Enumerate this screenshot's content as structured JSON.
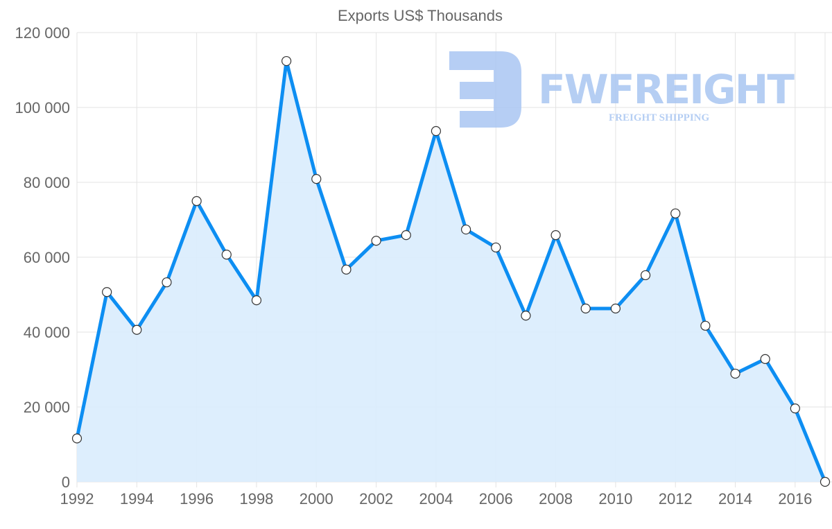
{
  "chart_data": {
    "type": "area",
    "title": "Exports US$ Thousands",
    "xlabel": "",
    "ylabel": "",
    "x": [
      1992,
      1993,
      1994,
      1995,
      1996,
      1997,
      1998,
      1999,
      2000,
      2001,
      2002,
      2003,
      2004,
      2005,
      2006,
      2007,
      2008,
      2009,
      2010,
      2011,
      2012,
      2013,
      2014,
      2015,
      2016,
      2017
    ],
    "series": [
      {
        "name": "Exports US$ Thousands",
        "values": [
          11600,
          50700,
          40600,
          53300,
          75000,
          60700,
          48500,
          112400,
          80900,
          56700,
          64400,
          65900,
          93700,
          67400,
          62600,
          44400,
          65900,
          46300,
          46300,
          55200,
          71700,
          41700,
          28900,
          32800,
          19600,
          0
        ]
      }
    ],
    "ylim": [
      0,
      120000
    ],
    "xlim": [
      1992,
      2017
    ],
    "y_ticks": [
      "0",
      "20 000",
      "40 000",
      "60 000",
      "80 000",
      "100 000",
      "120 000"
    ],
    "y_tick_values": [
      0,
      20000,
      40000,
      60000,
      80000,
      100000,
      120000
    ],
    "x_ticks": [
      "1992",
      "1994",
      "1996",
      "1998",
      "2000",
      "2002",
      "2004",
      "2006",
      "2008",
      "2010",
      "2012",
      "2014",
      "2016"
    ],
    "x_tick_values": [
      1992,
      1994,
      1996,
      1998,
      2000,
      2002,
      2004,
      2006,
      2008,
      2010,
      2012,
      2014,
      2016
    ],
    "grid": true,
    "legend": "none",
    "colors": {
      "line": "#0d8ef2",
      "fill": "#d9ecfd",
      "grid": "#e3e3e3",
      "marker_fill": "#ffffff",
      "marker_stroke": "#333333"
    }
  },
  "watermark": {
    "brand": "FWFREIGHT",
    "tagline": "FREIGHT SHIPPING",
    "color": "#a9c6f2"
  }
}
